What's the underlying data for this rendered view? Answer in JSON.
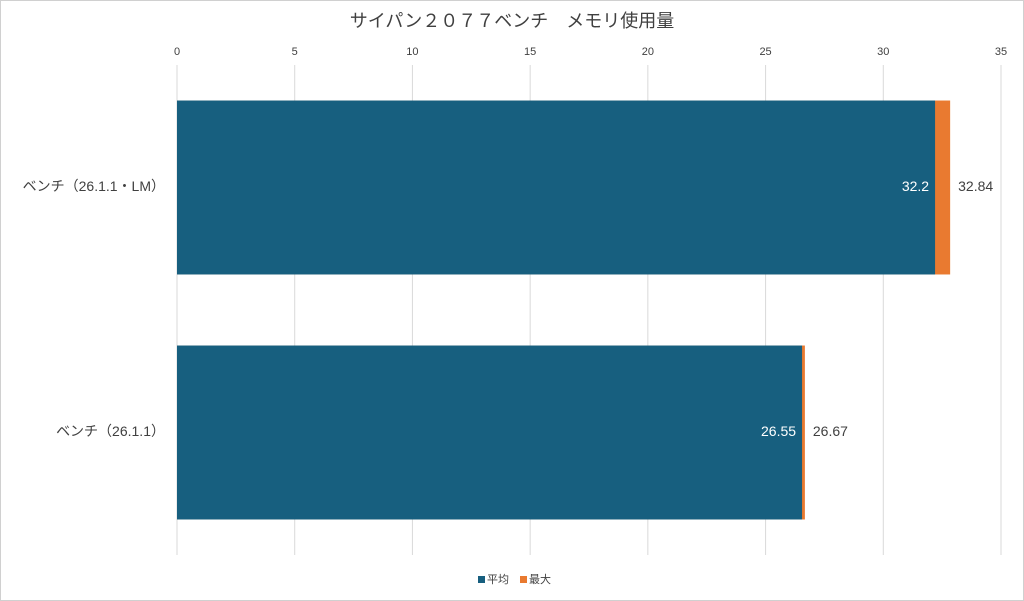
{
  "chart_data": {
    "type": "bar",
    "orientation": "horizontal",
    "overlap": true,
    "title": "サイパン２０７７ベンチ　メモリ使用量",
    "categories": [
      "ベンチ（26.1.1・LM）",
      "ベンチ（26.1.1）"
    ],
    "series": [
      {
        "name": "最大",
        "color": "#e97a30",
        "values": [
          32.84,
          26.67
        ]
      },
      {
        "name": "平均",
        "color": "#175f7f",
        "values": [
          32.2,
          26.55
        ]
      }
    ],
    "xlim": [
      0,
      35
    ],
    "xticks": [
      0,
      5,
      10,
      15,
      20,
      25,
      30,
      35
    ],
    "grid": true,
    "legend": "bottom"
  }
}
